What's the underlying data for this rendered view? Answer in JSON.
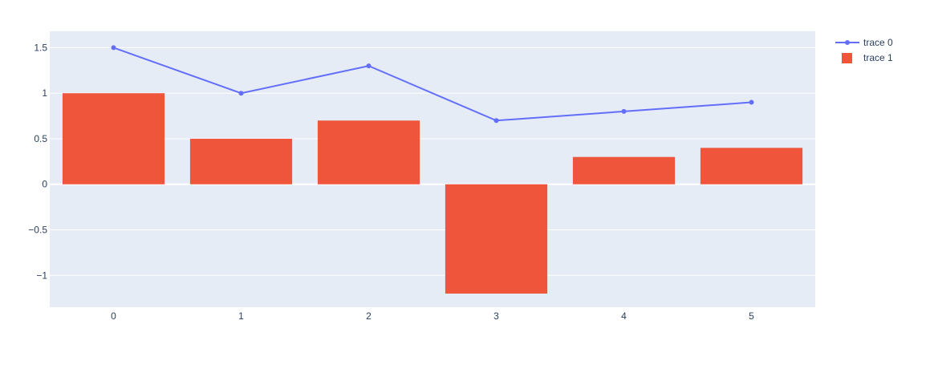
{
  "chart_data": {
    "type": "bar",
    "title": "",
    "xlabel": "",
    "ylabel": "",
    "categories": [
      0,
      1,
      2,
      3,
      4,
      5
    ],
    "x_tick_labels": [
      "0",
      "1",
      "2",
      "3",
      "4",
      "5"
    ],
    "y_ticks": [
      1.5,
      1,
      0.5,
      0,
      -0.5,
      -1
    ],
    "y_tick_labels": [
      "1.5",
      "1",
      "0.5",
      "0",
      "−0.5",
      "−1"
    ],
    "ylim": [
      -1.35,
      1.68
    ],
    "grid": true,
    "legend_position": "top-right",
    "plot_background": "#E5ECF6",
    "series": [
      {
        "name": "trace 0",
        "type": "line",
        "mode": "lines+markers",
        "x": [
          0,
          1,
          2,
          3,
          4,
          5
        ],
        "values": [
          1.5,
          1.0,
          1.3,
          0.7,
          0.8,
          0.9
        ],
        "color": "#636EFA"
      },
      {
        "name": "trace 1",
        "type": "bar",
        "x": [
          0,
          1,
          2,
          3,
          4,
          5
        ],
        "values": [
          1.0,
          0.5,
          0.7,
          -1.2,
          0.3,
          0.4
        ],
        "color": "#EF553B"
      }
    ]
  }
}
